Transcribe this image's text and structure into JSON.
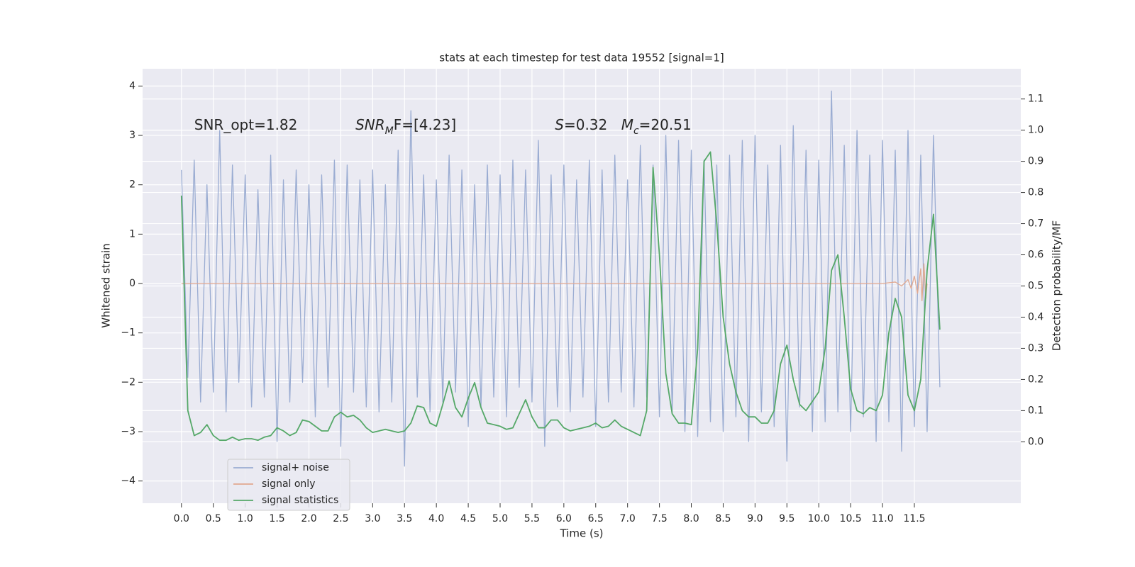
{
  "chart_data": {
    "type": "line",
    "title": "stats at each timestep for test data 19552 [signal=1]",
    "xlabel": "Time (s)",
    "ylabel": "Whitened strain",
    "y2label": "Detection probability/MF",
    "xlim": [
      -0.61,
      13.17
    ],
    "ylim": [
      -4.45,
      4.35
    ],
    "y2lim": [
      -0.197,
      1.197
    ],
    "xticks": [
      {
        "value": 0,
        "label": "0.0"
      },
      0.5,
      {
        "value": 1,
        "label": "1.0"
      },
      1.5,
      {
        "value": 2,
        "label": "2.0"
      },
      2.5,
      {
        "value": 3,
        "label": "3.0"
      },
      3.5,
      {
        "value": 4,
        "label": "4.0"
      },
      4.5,
      {
        "value": 5,
        "label": "5.0"
      },
      5.5,
      {
        "value": 6,
        "label": "6.0"
      },
      6.5,
      {
        "value": 7,
        "label": "7.0"
      },
      7.5,
      {
        "value": 8,
        "label": "8.0"
      },
      8.5,
      {
        "value": 9,
        "label": "9.0"
      },
      9.5,
      {
        "value": 10,
        "label": "10.0"
      },
      10.5,
      {
        "value": 11,
        "label": "11.0"
      },
      11.5
    ],
    "yticks": [
      {
        "value": -4,
        "label": "−4"
      },
      {
        "value": -3,
        "label": "−3"
      },
      {
        "value": -2,
        "label": "−2"
      },
      {
        "value": -1,
        "label": "−1"
      },
      0,
      1,
      2,
      3,
      4
    ],
    "y2ticks": [
      {
        "value": 0,
        "label": "0.0"
      },
      0.1,
      0.2,
      0.3,
      0.4,
      0.5,
      0.6,
      0.7,
      0.8,
      0.9,
      {
        "value": 1,
        "label": "1.0"
      },
      1.1
    ],
    "grid": true,
    "legend": "lower left",
    "x": [
      0.0,
      0.1,
      0.2,
      0.3,
      0.4,
      0.5,
      0.6,
      0.7,
      0.8,
      0.9,
      1.0,
      1.1,
      1.2,
      1.3,
      1.4,
      1.5,
      1.6,
      1.7,
      1.8,
      1.9,
      2.0,
      2.1,
      2.2,
      2.3,
      2.4,
      2.5,
      2.6,
      2.7,
      2.8,
      2.9,
      3.0,
      3.1,
      3.2,
      3.3,
      3.4,
      3.5,
      3.6,
      3.7,
      3.8,
      3.9,
      4.0,
      4.1,
      4.2,
      4.3,
      4.4,
      4.5,
      4.6,
      4.7,
      4.8,
      4.9,
      5.0,
      5.1,
      5.2,
      5.3,
      5.4,
      5.5,
      5.6,
      5.7,
      5.8,
      5.9,
      6.0,
      6.1,
      6.2,
      6.3,
      6.4,
      6.5,
      6.6,
      6.7,
      6.8,
      6.9,
      7.0,
      7.1,
      7.2,
      7.3,
      7.4,
      7.5,
      7.6,
      7.7,
      7.8,
      7.9,
      8.0,
      8.1,
      8.2,
      8.3,
      8.4,
      8.5,
      8.6,
      8.7,
      8.8,
      8.9,
      9.0,
      9.1,
      9.2,
      9.3,
      9.4,
      9.5,
      9.6,
      9.7,
      9.8,
      9.9,
      10.0,
      10.1,
      10.2,
      10.3,
      10.4,
      10.5,
      10.6,
      10.7,
      10.8,
      10.9,
      11.0,
      11.1,
      11.2,
      11.3,
      11.4,
      11.5,
      11.6,
      11.7,
      11.8,
      11.9
    ],
    "series": [
      {
        "name": "signal+ noise",
        "color": "#9aacd2",
        "values": [
          2.3,
          -1.9,
          2.5,
          -2.4,
          2.0,
          -2.2,
          3.1,
          -2.6,
          2.4,
          -2.0,
          2.2,
          -2.5,
          1.9,
          -2.3,
          2.6,
          -3.2,
          2.1,
          -2.4,
          2.3,
          -2.0,
          2.0,
          -2.7,
          2.2,
          -2.1,
          2.5,
          -3.3,
          2.4,
          -2.2,
          2.1,
          -2.5,
          2.3,
          -2.6,
          2.0,
          -2.4,
          2.7,
          -3.7,
          3.5,
          -2.3,
          2.2,
          -2.6,
          2.1,
          -2.4,
          2.6,
          -2.2,
          2.3,
          -2.9,
          2.0,
          -2.5,
          2.4,
          -2.3,
          2.2,
          -2.7,
          2.5,
          -2.1,
          2.3,
          -2.4,
          2.9,
          -3.3,
          2.2,
          -2.5,
          2.4,
          -2.6,
          2.1,
          -2.3,
          2.5,
          -2.9,
          2.3,
          -2.4,
          2.6,
          -2.2,
          2.1,
          -2.5,
          2.8,
          -2.3,
          2.4,
          -2.7,
          3.0,
          -2.6,
          2.9,
          -3.0,
          2.7,
          -3.1,
          2.5,
          -2.8,
          2.4,
          -3.0,
          2.6,
          -2.7,
          2.9,
          -3.2,
          3.0,
          -2.6,
          2.4,
          -2.9,
          2.8,
          -3.6,
          3.2,
          -2.5,
          2.7,
          -3.0,
          2.5,
          -2.8,
          3.9,
          -2.6,
          2.8,
          -3.0,
          3.1,
          -2.7,
          2.6,
          -3.2,
          2.9,
          -2.8,
          2.7,
          -3.4,
          3.1,
          -2.9,
          2.6,
          -3.0,
          3.0,
          -2.1
        ]
      },
      {
        "name": "signal only",
        "color": "#e0a890",
        "x": [
          0,
          11.0,
          11.2,
          11.3,
          11.4,
          11.45,
          11.5,
          11.55,
          11.6,
          11.62,
          11.65,
          11.68,
          11.7
        ],
        "values": [
          0,
          0,
          0.03,
          -0.05,
          0.08,
          -0.1,
          0.15,
          -0.2,
          0.3,
          -0.35,
          0.4,
          -0.3,
          0
        ]
      },
      {
        "name": "signal statistics",
        "color": "#55a868",
        "axis": "y2",
        "values": [
          0.79,
          0.1,
          0.02,
          0.03,
          0.055,
          0.02,
          0.005,
          0.005,
          0.015,
          0.005,
          0.01,
          0.01,
          0.005,
          0.015,
          0.02,
          0.045,
          0.035,
          0.02,
          0.03,
          0.07,
          0.065,
          0.05,
          0.035,
          0.035,
          0.08,
          0.095,
          0.08,
          0.085,
          0.07,
          0.045,
          0.03,
          0.035,
          0.04,
          0.035,
          0.03,
          0.035,
          0.06,
          0.115,
          0.11,
          0.06,
          0.05,
          0.12,
          0.195,
          0.11,
          0.08,
          0.14,
          0.19,
          0.11,
          0.06,
          0.055,
          0.05,
          0.04,
          0.045,
          0.09,
          0.135,
          0.08,
          0.045,
          0.045,
          0.07,
          0.07,
          0.045,
          0.035,
          0.04,
          0.045,
          0.05,
          0.06,
          0.045,
          0.05,
          0.07,
          0.05,
          0.04,
          0.03,
          0.02,
          0.1,
          0.88,
          0.6,
          0.22,
          0.09,
          0.06,
          0.06,
          0.055,
          0.3,
          0.9,
          0.93,
          0.7,
          0.4,
          0.25,
          0.16,
          0.1,
          0.08,
          0.08,
          0.06,
          0.06,
          0.1,
          0.25,
          0.31,
          0.2,
          0.12,
          0.1,
          0.13,
          0.16,
          0.3,
          0.55,
          0.6,
          0.4,
          0.17,
          0.1,
          0.09,
          0.11,
          0.1,
          0.15,
          0.35,
          0.46,
          0.4,
          0.15,
          0.1,
          0.2,
          0.55,
          0.73,
          0.36
        ]
      }
    ],
    "annotations": [
      {
        "x": 0.2,
        "y": 3.2,
        "parts": [
          {
            "text": "SNR_opt=1.82"
          }
        ]
      },
      {
        "x": 2.73,
        "y": 3.2,
        "parts": [
          {
            "text": "SNR",
            "italic": true
          },
          {
            "text": "M",
            "italic": true,
            "sub": true
          },
          {
            "text": "F=[4.23]"
          }
        ]
      },
      {
        "x": 5.86,
        "y": 3.2,
        "parts": [
          {
            "text": "S",
            "italic": true
          },
          {
            "text": "=0.32"
          }
        ]
      },
      {
        "x": 6.9,
        "y": 3.2,
        "parts": [
          {
            "text": "M",
            "italic": true
          },
          {
            "text": "c",
            "italic": true,
            "sub": true
          },
          {
            "text": "=20.51"
          }
        ]
      }
    ]
  }
}
